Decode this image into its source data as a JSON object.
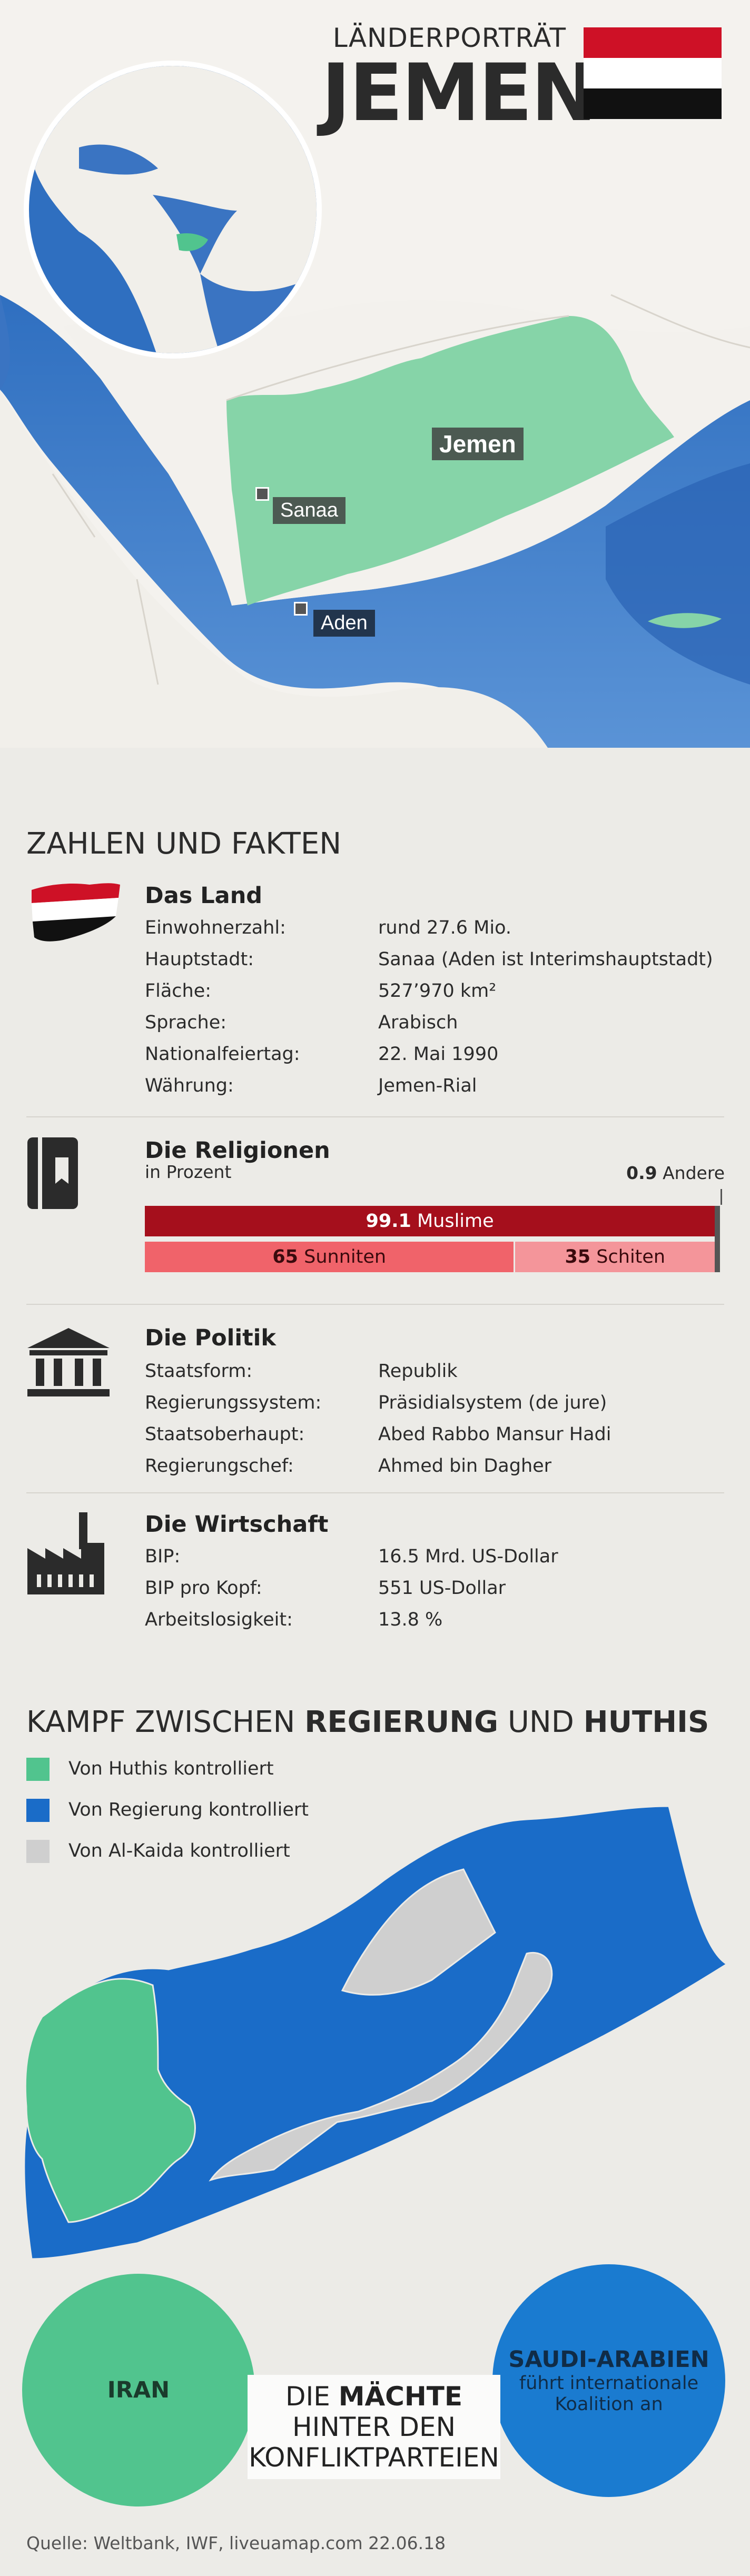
{
  "header": {
    "kicker": "LÄNDERPORTRÄT",
    "title": "JEMEN",
    "flag_colors": [
      "#ce1126",
      "#ffffff",
      "#111111"
    ]
  },
  "map": {
    "country_label": "Jemen",
    "cities": [
      "Sanaa",
      "Aden"
    ],
    "colors": {
      "sea": "#3e78c4",
      "land": "#f3f1ed",
      "country": "#83d4a7"
    }
  },
  "facts": {
    "section_title": "ZAHLEN UND FAKTEN",
    "land": {
      "title": "Das Land",
      "rows": [
        {
          "k": "Einwohnerzahl:",
          "v": "rund 27.6 Mio."
        },
        {
          "k": "Hauptstadt:",
          "v": "Sanaa (Aden ist Interimshauptstadt)"
        },
        {
          "k": "Fläche:",
          "v": "527’970 km²"
        },
        {
          "k": "Sprache:",
          "v": "Arabisch"
        },
        {
          "k": "Nationalfeiertag:",
          "v": "22. Mai 1990"
        },
        {
          "k": "Währung:",
          "v": "Jemen-Rial"
        }
      ]
    },
    "religion": {
      "title": "Die Religionen",
      "subtitle": "in Prozent",
      "other_value": "0.9",
      "other_label": "Andere",
      "muslim_value": "99.1",
      "muslim_label": "Muslime",
      "sunni_value": "65",
      "sunni_label": "Sunniten",
      "shia_value": "35",
      "shia_label": "Schiten"
    },
    "politics": {
      "title": "Die Politik",
      "rows": [
        {
          "k": "Staatsform:",
          "v": "Republik"
        },
        {
          "k": "Regierungssystem:",
          "v": "Präsidialsystem (de jure)"
        },
        {
          "k": "Staatsoberhaupt:",
          "v": "Abed Rabbo Mansur Hadi"
        },
        {
          "k": "Regierungschef:",
          "v": "Ahmed bin Dagher"
        }
      ]
    },
    "economy": {
      "title": "Die Wirtschaft",
      "rows": [
        {
          "k": "BIP:",
          "v": "16.5 Mrd. US-Dollar"
        },
        {
          "k": "BIP pro Kopf:",
          "v": "551 US-Dollar"
        },
        {
          "k": "Arbeitslosigkeit:",
          "v": "13.8 %"
        }
      ]
    }
  },
  "chart_data": {
    "type": "bar",
    "title": "Die Religionen",
    "subtitle": "in Prozent",
    "series": [
      {
        "name": "Muslime",
        "values": [
          99.1
        ]
      },
      {
        "name": "Andere",
        "values": [
          0.9
        ]
      },
      {
        "name": "Sunniten",
        "values": [
          65
        ]
      },
      {
        "name": "Schiten",
        "values": [
          35
        ]
      }
    ],
    "colors": {
      "Muslime": "#a50f1c",
      "Sunniten": "#f0636a",
      "Schiten": "#f4959a",
      "Andere": "#555555"
    }
  },
  "conflict": {
    "title_prefix": "KAMPF ZWISCHEN ",
    "title_bold1": "REGIERUNG",
    "title_mid": " UND ",
    "title_bold2": "HUTHIS",
    "legend": [
      {
        "label": "Von Huthis kontrolliert",
        "color": "#51c48e"
      },
      {
        "label": "Von Regierung kontrolliert",
        "color": "#1a6cc8"
      },
      {
        "label": "Von Al-Kaida kontrolliert",
        "color": "#cfcfcf"
      }
    ]
  },
  "powers": {
    "iran": "IRAN",
    "saudi": "SAUDI-ARABIEN",
    "saudi_sub1": "führt internationale",
    "saudi_sub2": "Koalition an",
    "line1_prefix": "DIE ",
    "line1_bold": "MÄCHTE",
    "line2": "HINTER DEN",
    "line3": "KONFLIKTPARTEIEN"
  },
  "source": "Quelle: Weltbank, IWF,  liveuamap.com 22.06.18"
}
